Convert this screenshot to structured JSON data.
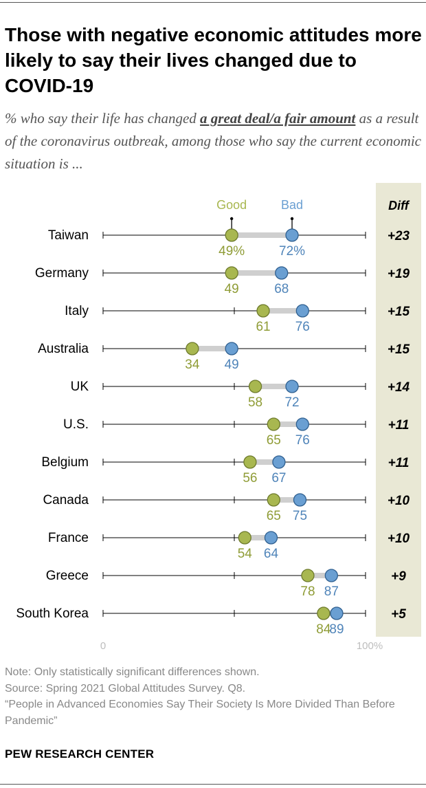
{
  "title": "Those with negative economic attitudes more likely to say their lives changed due to COVID-19",
  "subtitle": {
    "before": "% who say their life has changed ",
    "emphasis": "a great deal/a fair amount",
    "after": " as a result of the coronavirus outbreak, among those who say the current economic situation is ..."
  },
  "chart_data": {
    "type": "dot",
    "legend": {
      "good": "Good",
      "bad": "Bad"
    },
    "diff_header": "Diff",
    "axis": {
      "min": 0,
      "max": 100,
      "min_label": "0",
      "max_label": "100%"
    },
    "colors": {
      "good": "#a8b750",
      "bad": "#6a9fd2",
      "diff_bg": "#e9e8d5",
      "connector": "#cfcfcf"
    },
    "categories": [
      "Taiwan",
      "Germany",
      "Italy",
      "Australia",
      "UK",
      "U.S.",
      "Belgium",
      "Canada",
      "France",
      "Greece",
      "South Korea"
    ],
    "series": [
      {
        "name": "Good",
        "values": [
          49,
          49,
          61,
          34,
          58,
          65,
          56,
          65,
          54,
          78,
          84
        ],
        "labels": [
          "49%",
          "49",
          "61",
          "34",
          "58",
          "65",
          "56",
          "65",
          "54",
          "78",
          "84"
        ]
      },
      {
        "name": "Bad",
        "values": [
          72,
          68,
          76,
          49,
          72,
          76,
          67,
          75,
          64,
          87,
          89
        ],
        "labels": [
          "72%",
          "68",
          "76",
          "49",
          "72",
          "76",
          "67",
          "75",
          "64",
          "87",
          "89"
        ]
      }
    ],
    "diff": [
      "+23",
      "+19",
      "+15",
      "+15",
      "+14",
      "+11",
      "+11",
      "+10",
      "+10",
      "+9",
      "+5"
    ]
  },
  "notes": [
    "Note: Only statistically significant differences shown.",
    "Source: Spring 2021 Global Attitudes Survey. Q8.",
    "“People in Advanced Economies Say Their Society Is More Divided Than Before Pandemic”"
  ],
  "brand": "PEW RESEARCH CENTER"
}
